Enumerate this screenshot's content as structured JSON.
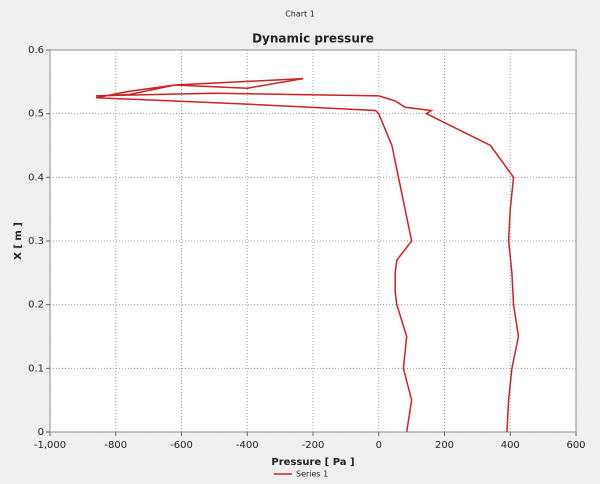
{
  "header": "Chart 1",
  "chart_data": {
    "type": "line",
    "title": "Dynamic pressure",
    "xlabel": "Pressure [ Pa ]",
    "ylabel": "X [ m ]",
    "x": [
      85,
      100,
      75,
      85,
      55,
      50,
      50,
      55,
      100,
      60,
      40,
      0,
      -10,
      -400,
      -860,
      -760,
      -620,
      -230,
      -400,
      -620,
      -760,
      -860,
      -500,
      0,
      50,
      80,
      160,
      145,
      340,
      410,
      400,
      395,
      405,
      410,
      425,
      405,
      395,
      390
    ],
    "series": [
      {
        "name": "Series 1",
        "color": "#cc2222",
        "values": [
          0,
          0.05,
          0.1,
          0.15,
          0.2,
          0.22,
          0.25,
          0.27,
          0.3,
          0.4,
          0.45,
          0.5,
          0.505,
          0.515,
          0.525,
          0.535,
          0.545,
          0.555,
          0.54,
          0.545,
          0.53,
          0.528,
          0.532,
          0.528,
          0.52,
          0.51,
          0.505,
          0.5,
          0.45,
          0.4,
          0.35,
          0.3,
          0.25,
          0.2,
          0.15,
          0.1,
          0.05,
          0
        ]
      }
    ],
    "xlim": [
      -1000,
      600
    ],
    "xticks": [
      {
        "value": -1000,
        "label": "-1,000"
      },
      -800,
      -600,
      -400,
      -200,
      0,
      200,
      400,
      600
    ],
    "ylim": [
      0,
      0.6
    ],
    "yticks": [
      0,
      0.1,
      0.2,
      0.3,
      0.4,
      0.5,
      0.6
    ],
    "grid": true,
    "legend": "bottom"
  }
}
